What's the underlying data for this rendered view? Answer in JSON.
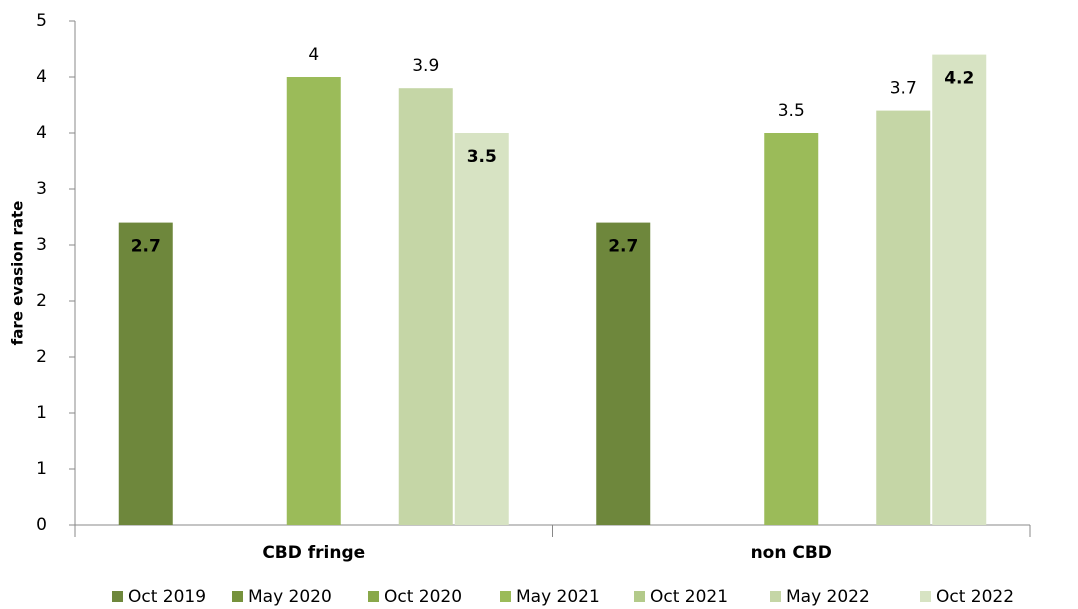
{
  "chart_data": {
    "type": "bar",
    "y_label": "fare evasion rate",
    "categories": [
      "CBD fringe",
      "non CBD"
    ],
    "series": [
      {
        "name": "Oct 2019",
        "color": "#6e873c",
        "values": [
          2.7,
          2.7
        ]
      },
      {
        "name": "May 2020",
        "color": "#76923c",
        "values": [
          null,
          null
        ]
      },
      {
        "name": "Oct 2020",
        "color": "#89a84a",
        "values": [
          null,
          null
        ]
      },
      {
        "name": "May 2021",
        "color": "#9bbb59",
        "values": [
          4.0,
          3.5
        ]
      },
      {
        "name": "Oct 2021",
        "color": "#b3ca8a",
        "values": [
          null,
          null
        ]
      },
      {
        "name": "May 2022",
        "color": "#c5d6a6",
        "values": [
          3.9,
          3.7
        ]
      },
      {
        "name": "Oct 2022",
        "color": "#d7e3c3",
        "values": [
          3.5,
          4.2
        ]
      }
    ],
    "ylim": [
      0,
      4.5
    ],
    "yticks": [
      0,
      {
        "value": 0.5,
        "label": "1"
      },
      1,
      {
        "value": 1.5,
        "label": "2"
      },
      2,
      {
        "value": 2.5,
        "label": "3"
      },
      3,
      {
        "value": 3.5,
        "label": "4"
      },
      4,
      {
        "value": 4.5,
        "label": "5"
      }
    ],
    "grid": false,
    "legend": "bottom"
  }
}
